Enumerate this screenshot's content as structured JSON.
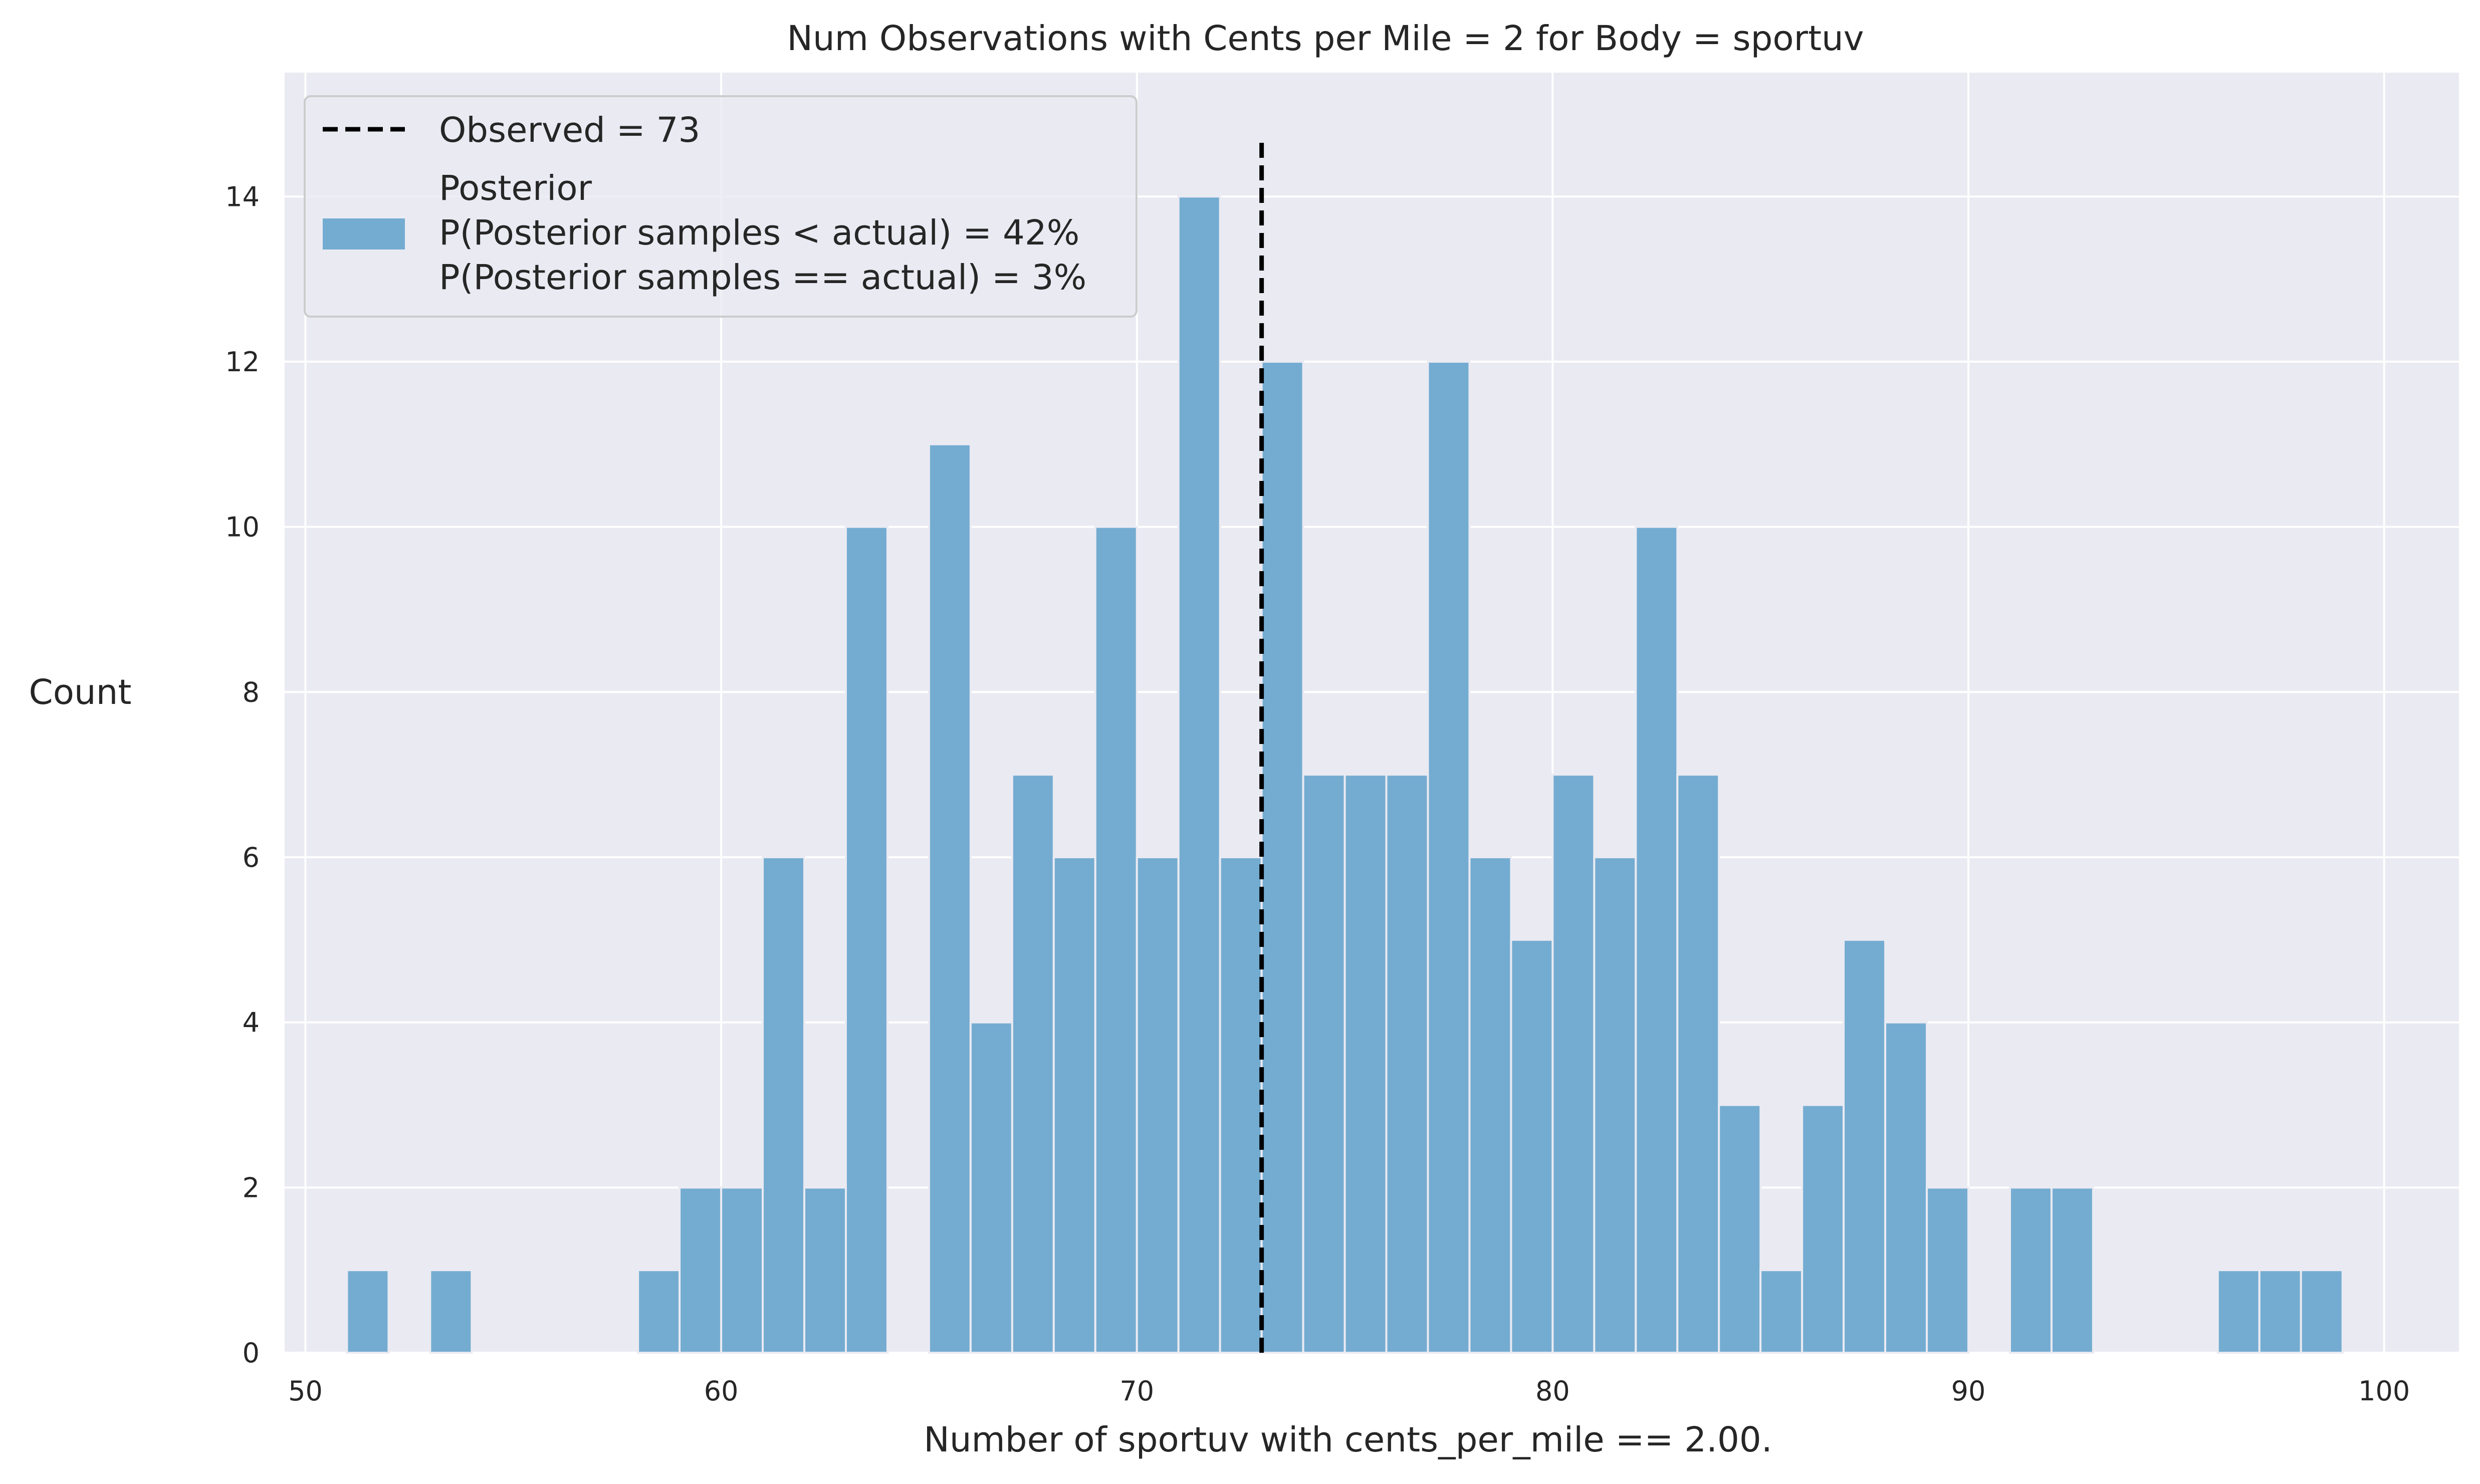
{
  "chart_data": {
    "type": "bar",
    "title": "Num Observations with Cents per Mile = 2 for Body = sportuv",
    "xlabel": "Number of sportuv with cents_per_mile == 2.00.",
    "ylabel": "Count",
    "xlim": [
      49.5,
      101.8
    ],
    "ylim": [
      0,
      15.5
    ],
    "xticks": [
      50,
      60,
      70,
      80,
      90,
      100
    ],
    "yticks": [
      0,
      2,
      4,
      6,
      8,
      10,
      12,
      14
    ],
    "grid": true,
    "bin_width": 1,
    "bins": [
      {
        "x": 51.5,
        "count": 1
      },
      {
        "x": 53.5,
        "count": 1
      },
      {
        "x": 58.5,
        "count": 1
      },
      {
        "x": 59.5,
        "count": 2
      },
      {
        "x": 60.5,
        "count": 2
      },
      {
        "x": 61.5,
        "count": 6
      },
      {
        "x": 62.5,
        "count": 2
      },
      {
        "x": 63.5,
        "count": 10
      },
      {
        "x": 65.5,
        "count": 11
      },
      {
        "x": 66.5,
        "count": 4
      },
      {
        "x": 67.5,
        "count": 7
      },
      {
        "x": 68.5,
        "count": 6
      },
      {
        "x": 69.5,
        "count": 10
      },
      {
        "x": 70.5,
        "count": 6
      },
      {
        "x": 71.5,
        "count": 14
      },
      {
        "x": 72.5,
        "count": 6
      },
      {
        "x": 73.5,
        "count": 12
      },
      {
        "x": 74.5,
        "count": 7
      },
      {
        "x": 75.5,
        "count": 7
      },
      {
        "x": 76.5,
        "count": 7
      },
      {
        "x": 77.5,
        "count": 12
      },
      {
        "x": 78.5,
        "count": 6
      },
      {
        "x": 79.5,
        "count": 5
      },
      {
        "x": 80.5,
        "count": 7
      },
      {
        "x": 81.5,
        "count": 6
      },
      {
        "x": 82.5,
        "count": 10
      },
      {
        "x": 83.5,
        "count": 7
      },
      {
        "x": 84.5,
        "count": 3
      },
      {
        "x": 85.5,
        "count": 1
      },
      {
        "x": 86.5,
        "count": 3
      },
      {
        "x": 87.5,
        "count": 5
      },
      {
        "x": 88.5,
        "count": 4
      },
      {
        "x": 89.5,
        "count": 2
      },
      {
        "x": 91.5,
        "count": 2
      },
      {
        "x": 92.5,
        "count": 2
      },
      {
        "x": 96.5,
        "count": 1
      },
      {
        "x": 97.5,
        "count": 1
      },
      {
        "x": 98.5,
        "count": 1
      }
    ],
    "observed": 73,
    "legend": {
      "position": "upper-left",
      "observed_label": "Observed = 73",
      "posterior_lines": [
        "Posterior",
        "P(Posterior samples < actual) = 42%",
        "P(Posterior samples == actual) = 3%"
      ]
    },
    "colors": {
      "bar": "#74acd1",
      "bar_edge": "#eaeaf2",
      "plot_background": "#eaeaf2",
      "grid": "#ffffff",
      "observed_line": "#000000"
    }
  }
}
